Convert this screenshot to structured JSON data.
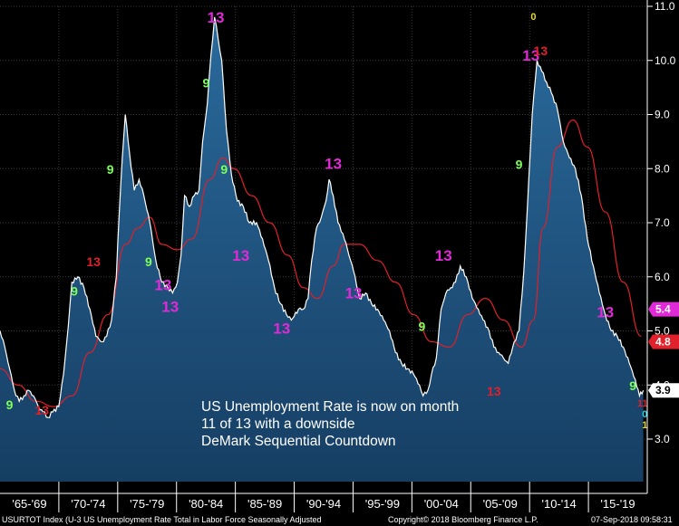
{
  "chart_data": {
    "type": "line",
    "title": "",
    "xlabel": "",
    "ylabel": "",
    "x_range": [
      1965.0,
      2019.0
    ],
    "ylim": [
      2.1,
      11.1
    ],
    "y_ticks": [
      3.0,
      4.0,
      5.0,
      6.0,
      7.0,
      8.0,
      9.0,
      10.0,
      11.0
    ],
    "y_tick_labels": [
      "3.0",
      "4.0",
      "5.0",
      "6.0",
      "7.0",
      "8.0",
      "9.0",
      "10.0",
      "11.0"
    ],
    "x_tick_labels": [
      "'65-'69",
      "'70-'74",
      "'75-'79",
      "'80-'84",
      "'85-'89",
      "'90-'94",
      "'95-'99",
      "'00-'04",
      "'05-'09",
      "'10-'14",
      "'15-'19"
    ],
    "series": [
      {
        "name": "",
        "kind": "unemployment-rate",
        "color": "#ffffff",
        "x": [
          1965.0,
          1965.4,
          1965.8,
          1966.2,
          1966.6,
          1967.0,
          1967.4,
          1967.8,
          1968.2,
          1968.6,
          1969.0,
          1969.4,
          1969.9,
          1970.3,
          1970.7,
          1971.0,
          1971.5,
          1972.0,
          1972.5,
          1973.0,
          1973.5,
          1973.9,
          1974.3,
          1974.7,
          1974.95,
          1975.2,
          1975.45,
          1975.8,
          1976.2,
          1976.6,
          1977.0,
          1977.5,
          1978.0,
          1978.5,
          1979.0,
          1979.4,
          1979.8,
          1980.1,
          1980.4,
          1980.8,
          1981.2,
          1981.6,
          1981.9,
          1982.3,
          1982.6,
          1982.9,
          1983.2,
          1983.5,
          1983.9,
          1984.3,
          1984.8,
          1985.3,
          1985.8,
          1986.4,
          1986.9,
          1987.4,
          1987.9,
          1988.4,
          1988.9,
          1989.3,
          1989.9,
          1990.3,
          1990.7,
          1991.0,
          1991.4,
          1991.8,
          1992.2,
          1992.45,
          1992.8,
          1993.2,
          1993.6,
          1994.0,
          1994.5,
          1995.0,
          1995.5,
          1996.0,
          1996.5,
          1997.0,
          1997.5,
          1998.0,
          1998.5,
          1999.0,
          1999.5,
          2000.0,
          2000.3,
          2000.7,
          2001.0,
          2001.4,
          2001.8,
          2002.2,
          2002.6,
          2003.0,
          2003.4,
          2003.9,
          2004.4,
          2004.9,
          2005.3,
          2005.8,
          2006.2,
          2006.6,
          2007.0,
          2007.4,
          2007.9,
          2008.3,
          2008.7,
          2009.0,
          2009.4,
          2009.8,
          2010.2,
          2010.6,
          2011.0,
          2011.5,
          2012.0,
          2012.5,
          2013.0,
          2013.5,
          2014.0,
          2014.5,
          2015.0,
          2015.5,
          2016.0,
          2016.5,
          2017.0,
          2017.5,
          2018.0,
          2018.35,
          2018.67
        ],
        "y": [
          5.0,
          4.7,
          4.3,
          3.9,
          3.7,
          3.8,
          3.9,
          3.8,
          3.6,
          3.5,
          3.4,
          3.5,
          3.6,
          4.2,
          5.1,
          5.9,
          6.0,
          5.8,
          5.4,
          4.9,
          4.8,
          4.9,
          5.2,
          6.0,
          7.2,
          8.2,
          9.0,
          8.3,
          7.6,
          7.8,
          7.5,
          7.0,
          6.3,
          5.9,
          5.8,
          5.7,
          5.9,
          6.4,
          7.5,
          7.3,
          7.5,
          7.6,
          8.5,
          9.2,
          10.1,
          10.8,
          10.4,
          10.0,
          8.7,
          7.9,
          7.4,
          7.3,
          7.0,
          7.0,
          6.7,
          6.3,
          5.8,
          5.5,
          5.3,
          5.2,
          5.4,
          5.4,
          5.6,
          6.3,
          6.9,
          7.1,
          7.4,
          7.8,
          7.5,
          7.0,
          6.8,
          6.5,
          6.1,
          5.6,
          5.7,
          5.5,
          5.4,
          5.2,
          5.0,
          4.6,
          4.4,
          4.3,
          4.2,
          4.0,
          3.8,
          3.9,
          4.2,
          4.5,
          5.4,
          5.7,
          5.8,
          5.9,
          6.2,
          6.0,
          5.6,
          5.4,
          5.2,
          5.0,
          4.7,
          4.6,
          4.5,
          4.4,
          4.8,
          5.0,
          6.1,
          7.3,
          9.0,
          10.0,
          9.8,
          9.6,
          9.4,
          9.1,
          8.5,
          8.2,
          8.0,
          7.5,
          6.7,
          6.2,
          5.7,
          5.3,
          5.0,
          4.9,
          4.7,
          4.4,
          4.1,
          3.8,
          3.9
        ]
      },
      {
        "name": "",
        "kind": "moving-average",
        "color": "#e0202a",
        "x": [
          1965.0,
          1966.5,
          1968.0,
          1969.5,
          1971.0,
          1972.5,
          1974.0,
          1975.5,
          1976.5,
          1977.5,
          1978.5,
          1979.8,
          1981.0,
          1982.5,
          1983.6,
          1984.5,
          1986.0,
          1987.5,
          1989.0,
          1990.3,
          1991.5,
          1992.8,
          1993.7,
          1995.0,
          1996.5,
          1998.0,
          1999.5,
          2001.0,
          2002.5,
          2004.0,
          2005.5,
          2007.0,
          2008.5,
          2009.5,
          2010.3,
          2011.5,
          2012.8,
          2014.0,
          2015.5,
          2017.0,
          2018.5
        ],
        "y": [
          4.3,
          4.0,
          3.7,
          3.6,
          3.8,
          4.6,
          5.3,
          6.6,
          6.9,
          7.1,
          6.6,
          6.5,
          6.7,
          7.8,
          8.2,
          8.0,
          7.5,
          7.0,
          6.4,
          5.8,
          5.6,
          6.2,
          6.6,
          6.6,
          6.3,
          5.9,
          5.3,
          4.8,
          4.7,
          5.3,
          5.6,
          5.2,
          4.7,
          5.2,
          6.9,
          8.4,
          8.9,
          8.4,
          7.2,
          5.9,
          4.9
        ]
      }
    ],
    "current_value_badges": [
      {
        "value": "3.9",
        "color": "#ffffff",
        "text_color": "#000000"
      },
      {
        "value": "4.8",
        "color": "#e0202a",
        "text_color": "#ffffff"
      },
      {
        "value": "5.4",
        "color": "#e02ad8",
        "text_color": "#ffffff"
      }
    ],
    "demark_markers": [
      {
        "label": "9",
        "color": "#7cff5a",
        "x": 1965.8,
        "y": 3.55
      },
      {
        "label": "13",
        "color": "#e0202a",
        "x": 1968.5,
        "y": 3.45
      },
      {
        "label": "9",
        "color": "#7cff5a",
        "x": 1971.2,
        "y": 5.65
      },
      {
        "label": "13",
        "color": "#e0202a",
        "x": 1972.8,
        "y": 6.2
      },
      {
        "label": "9",
        "color": "#7cff5a",
        "x": 1974.2,
        "y": 7.9
      },
      {
        "label": "9",
        "color": "#7cff5a",
        "x": 1977.4,
        "y": 6.2
      },
      {
        "label": "13",
        "color": "#e02ad8",
        "x": 1978.6,
        "y": 5.75
      },
      {
        "label": "13",
        "color": "#e02ad8",
        "x": 1979.2,
        "y": 5.35
      },
      {
        "label": "9",
        "color": "#7cff5a",
        "x": 1982.2,
        "y": 9.5
      },
      {
        "label": "13",
        "color": "#e02ad8",
        "x": 1983.0,
        "y": 10.7
      },
      {
        "label": "9",
        "color": "#7cff5a",
        "x": 1983.7,
        "y": 7.9
      },
      {
        "label": "13",
        "color": "#e02ad8",
        "x": 1985.1,
        "y": 6.3
      },
      {
        "label": "13",
        "color": "#e02ad8",
        "x": 1988.5,
        "y": 4.95
      },
      {
        "label": "13",
        "color": "#e02ad8",
        "x": 1992.8,
        "y": 8.0
      },
      {
        "label": "13",
        "color": "#e02ad8",
        "x": 1994.5,
        "y": 5.6
      },
      {
        "label": "9",
        "color": "#7cff5a",
        "x": 2000.2,
        "y": 5.0
      },
      {
        "label": "13",
        "color": "#e02ad8",
        "x": 2002.0,
        "y": 6.3
      },
      {
        "label": "13",
        "color": "#e0202a",
        "x": 2006.2,
        "y": 3.8
      },
      {
        "label": "9",
        "color": "#7cff5a",
        "x": 2008.3,
        "y": 8.0
      },
      {
        "label": "13",
        "color": "#e02ad8",
        "x": 2009.3,
        "y": 10.0
      },
      {
        "label": "13",
        "color": "#e0202a",
        "x": 2010.1,
        "y": 10.1
      },
      {
        "label": "13",
        "color": "#e02ad8",
        "x": 2015.5,
        "y": 5.25
      },
      {
        "label": "9",
        "color": "#7cff5a",
        "x": 2017.8,
        "y": 3.9
      },
      {
        "label": "11",
        "color": "#e0202a",
        "x": 2018.6,
        "y": 3.6
      },
      {
        "label": "0",
        "color": "#29d3e8",
        "x": 2018.8,
        "y": 3.4
      },
      {
        "label": "1",
        "color": "#e8d829",
        "x": 2018.8,
        "y": 3.2
      },
      {
        "label": "0",
        "color": "#e8d829",
        "x": 2009.5,
        "y": 10.75
      }
    ],
    "annotation": "US Unemployment Rate is now on month 11 of 13 with a downside DeMark Sequential Countdown",
    "footer": {
      "source": "USURTOT Index (U-3 US Unemployment Rate Total in Labor Force Seasonally Adjusted",
      "copyright": "Copyright© 2018 Bloomberg Finance L.P.",
      "timestamp": "07-Sep-2018 09:58:31"
    },
    "colors": {
      "background": "#000000",
      "area_fill": "#1d4d78",
      "line": "#ffffff",
      "moving_average": "#e0202a",
      "demark_green": "#7cff5a",
      "demark_red": "#e0202a",
      "demark_magenta": "#e02ad8"
    },
    "grid": true,
    "y_axis_side": "right"
  }
}
